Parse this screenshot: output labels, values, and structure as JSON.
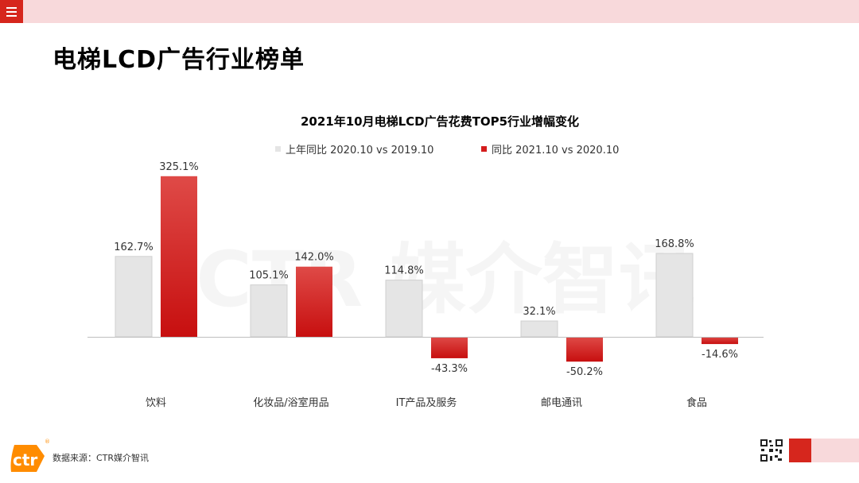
{
  "page": {
    "title": "电梯LCD广告行业榜单",
    "source": "数据来源：CTR媒介智讯",
    "watermark": "CTR 媒介智讯",
    "logo_text": "ctr",
    "logo_mark": "®"
  },
  "colors": {
    "accent": "#d6261d",
    "accent_light": "#f8d9db",
    "series_prev": "#e5e5e5",
    "series_curr": "#d41d1d"
  },
  "icons": {
    "menu": "menu-icon",
    "qr": "qr-code-icon"
  },
  "chart_data": {
    "type": "bar",
    "title": "2021年10月电梯LCD广告花费TOP5行业增幅变化",
    "legend_position": "top",
    "categories": [
      "饮料",
      "化妆品/浴室用品",
      "IT产品及服务",
      "邮电通讯",
      "食品"
    ],
    "series": [
      {
        "name": "上年同比 2020.10 vs 2019.10",
        "values": [
          162.7,
          105.1,
          114.8,
          32.1,
          168.8
        ],
        "labels": [
          "162.7%",
          "105.1%",
          "114.8%",
          "32.1%",
          "168.8%"
        ]
      },
      {
        "name": "同比 2021.10 vs 2020.10",
        "values": [
          325.1,
          142.0,
          -43.3,
          -50.2,
          -14.6
        ],
        "labels": [
          "325.1%",
          "142.0%",
          "-43.3%",
          "-50.2%",
          "-14.6%"
        ]
      }
    ],
    "unit": "%",
    "grid": false
  }
}
